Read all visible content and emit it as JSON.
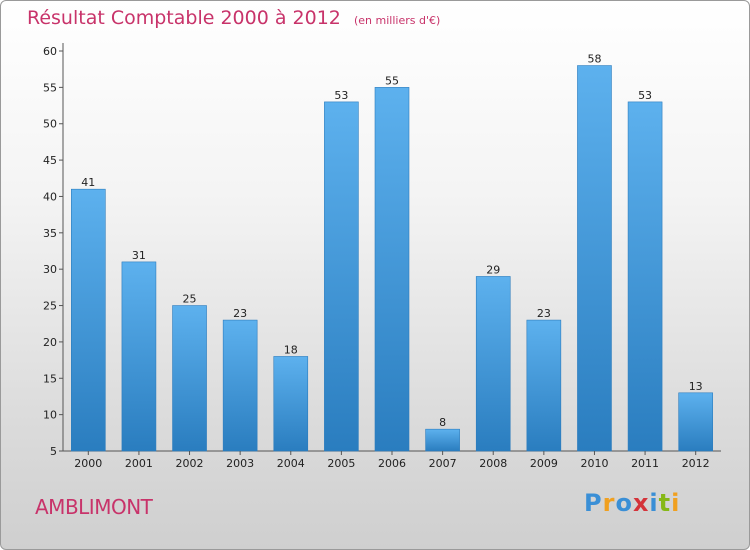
{
  "title": "Résultat Comptable 2000 à 2012",
  "subtitle": "(en milliers d'€)",
  "town": "AMBLIMONT",
  "logo": {
    "letters": [
      "P",
      "r",
      "o",
      "x",
      "i",
      "t",
      "i"
    ],
    "colors": [
      "#3a8fd6",
      "#f0a020",
      "#3a8fd6",
      "#d4333a",
      "#3a8fd6",
      "#86b817",
      "#f0a020"
    ]
  },
  "colors": {
    "bar_top": "#5db1ee",
    "bar_bottom": "#2a7dbf",
    "title": "#c8336a"
  },
  "chart_data": {
    "type": "bar",
    "title": "Résultat Comptable 2000 à 2012",
    "subtitle": "(en milliers d'€)",
    "categories": [
      "2000",
      "2001",
      "2002",
      "2003",
      "2004",
      "2005",
      "2006",
      "2007",
      "2008",
      "2009",
      "2010",
      "2011",
      "2012"
    ],
    "values": [
      41,
      31,
      25,
      23,
      18,
      53,
      55,
      8,
      29,
      23,
      58,
      53,
      13
    ],
    "ylim": [
      5,
      60
    ],
    "yticks": [
      5,
      10,
      15,
      20,
      25,
      30,
      35,
      40,
      45,
      50,
      55,
      60
    ],
    "grid": false,
    "legend": "none"
  }
}
